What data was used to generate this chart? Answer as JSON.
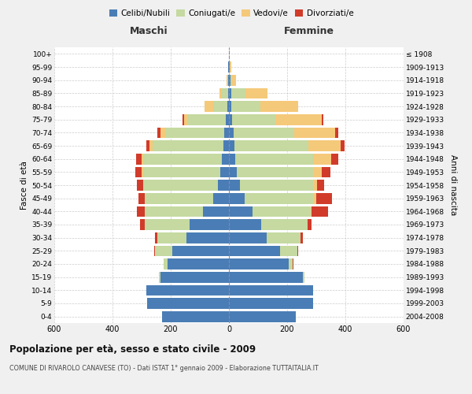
{
  "age_groups": [
    "0-4",
    "5-9",
    "10-14",
    "15-19",
    "20-24",
    "25-29",
    "30-34",
    "35-39",
    "40-44",
    "45-49",
    "50-54",
    "55-59",
    "60-64",
    "65-69",
    "70-74",
    "75-79",
    "80-84",
    "85-89",
    "90-94",
    "95-99",
    "100+"
  ],
  "birth_years": [
    "2004-2008",
    "1999-2003",
    "1994-1998",
    "1989-1993",
    "1984-1988",
    "1979-1983",
    "1974-1978",
    "1969-1973",
    "1964-1968",
    "1959-1963",
    "1954-1958",
    "1949-1953",
    "1944-1948",
    "1939-1943",
    "1934-1938",
    "1929-1933",
    "1924-1928",
    "1919-1923",
    "1914-1918",
    "1909-1913",
    "≤ 1908"
  ],
  "colors": {
    "celibi": "#4a7db5",
    "coniugati": "#c5d9a0",
    "vedovi": "#f5c97a",
    "divorziati": "#d13b2a"
  },
  "maschi": {
    "celibi": [
      230,
      280,
      285,
      235,
      210,
      195,
      145,
      135,
      90,
      55,
      38,
      30,
      25,
      18,
      15,
      10,
      5,
      3,
      2,
      2,
      1
    ],
    "coniugati": [
      0,
      0,
      0,
      5,
      15,
      60,
      100,
      155,
      200,
      235,
      255,
      265,
      270,
      245,
      200,
      130,
      50,
      20,
      3,
      0,
      0
    ],
    "vedovi": [
      0,
      0,
      0,
      0,
      0,
      0,
      0,
      0,
      0,
      0,
      2,
      5,
      5,
      10,
      20,
      15,
      30,
      10,
      3,
      0,
      0
    ],
    "divorziati": [
      0,
      0,
      0,
      0,
      0,
      2,
      10,
      15,
      25,
      20,
      20,
      22,
      20,
      12,
      10,
      5,
      0,
      0,
      0,
      0,
      0
    ]
  },
  "femmine": {
    "celibi": [
      230,
      290,
      290,
      255,
      205,
      175,
      130,
      110,
      80,
      55,
      38,
      28,
      22,
      18,
      15,
      10,
      8,
      7,
      5,
      3,
      1
    ],
    "coniugati": [
      0,
      0,
      0,
      5,
      15,
      60,
      115,
      160,
      200,
      235,
      250,
      260,
      270,
      255,
      210,
      150,
      100,
      50,
      5,
      0,
      0
    ],
    "vedovi": [
      0,
      0,
      0,
      0,
      0,
      0,
      0,
      0,
      5,
      10,
      15,
      30,
      60,
      110,
      140,
      160,
      130,
      75,
      15,
      5,
      1
    ],
    "divorziati": [
      0,
      0,
      0,
      0,
      2,
      2,
      10,
      15,
      55,
      55,
      25,
      30,
      25,
      15,
      10,
      5,
      0,
      0,
      0,
      0,
      0
    ]
  },
  "xlim": 600,
  "xticks": [
    -600,
    -400,
    -200,
    0,
    200,
    400,
    600
  ],
  "title": "Popolazione per età, sesso e stato civile - 2009",
  "subtitle": "COMUNE DI RIVAROLO CANAVESE (TO) - Dati ISTAT 1° gennaio 2009 - Elaborazione TUTTAITALIA.IT",
  "ylabel": "Fasce di età",
  "ylabel_right": "Anni di nascita",
  "xlabel_left": "Maschi",
  "xlabel_right": "Femmine",
  "bg_color": "#f0f0f0",
  "plot_bg": "#ffffff",
  "legend_labels": [
    "Celibi/Nubili",
    "Coniugati/e",
    "Vedovi/e",
    "Divorziati/e"
  ]
}
